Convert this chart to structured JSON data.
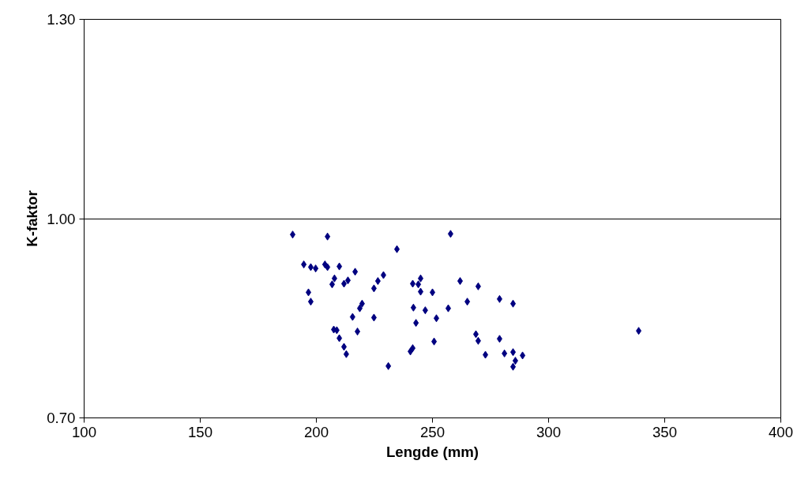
{
  "chart_data": {
    "type": "scatter",
    "xlabel": "Lengde (mm)",
    "ylabel": "K-faktor",
    "xlim": [
      100,
      400
    ],
    "xticks": [
      100,
      150,
      200,
      250,
      300,
      350,
      400
    ],
    "ylim": [
      0.7,
      1.3
    ],
    "yticks": [
      {
        "value": 0.7,
        "label": "0.70"
      },
      {
        "value": 1.0,
        "label": "1.00"
      },
      {
        "value": 1.3,
        "label": "1.30"
      }
    ],
    "grid": "y",
    "marker": "diamond",
    "series": [
      {
        "color": "#000080",
        "x": [
          189.8,
          204.8,
          257.8,
          234.7,
          194.6,
          197.6,
          199.7,
          203.7,
          204.8,
          209.9,
          216.7,
          207.8,
          206.8,
          211.9,
          213.6,
          228.9,
          226.5,
          224.8,
          196.6,
          197.6,
          219.7,
          218.7,
          215.6,
          224.8,
          207.5,
          208.8,
          217.7,
          209.9,
          211.9,
          212.9,
          231.0,
          241.5,
          243.9,
          244.9,
          244.9,
          250.0,
          261.9,
          241.8,
          246.9,
          256.8,
          265.0,
          242.9,
          251.7,
          250.7,
          241.5,
          240.5,
          269.7,
          278.9,
          284.7,
          268.7,
          269.7,
          278.9,
          272.8,
          281.0,
          284.7,
          288.8,
          285.7,
          284.7,
          338.8
        ],
        "values": [
          0.976,
          0.973,
          0.977,
          0.954,
          0.931,
          0.927,
          0.925,
          0.931,
          0.927,
          0.928,
          0.92,
          0.91,
          0.901,
          0.902,
          0.907,
          0.915,
          0.906,
          0.895,
          0.889,
          0.875,
          0.872,
          0.865,
          0.852,
          0.851,
          0.833,
          0.832,
          0.83,
          0.82,
          0.807,
          0.796,
          0.778,
          0.902,
          0.901,
          0.91,
          0.89,
          0.889,
          0.906,
          0.866,
          0.862,
          0.865,
          0.875,
          0.843,
          0.85,
          0.815,
          0.805,
          0.8,
          0.898,
          0.879,
          0.872,
          0.826,
          0.816,
          0.819,
          0.795,
          0.797,
          0.799,
          0.794,
          0.786,
          0.777,
          0.831
        ]
      }
    ]
  }
}
